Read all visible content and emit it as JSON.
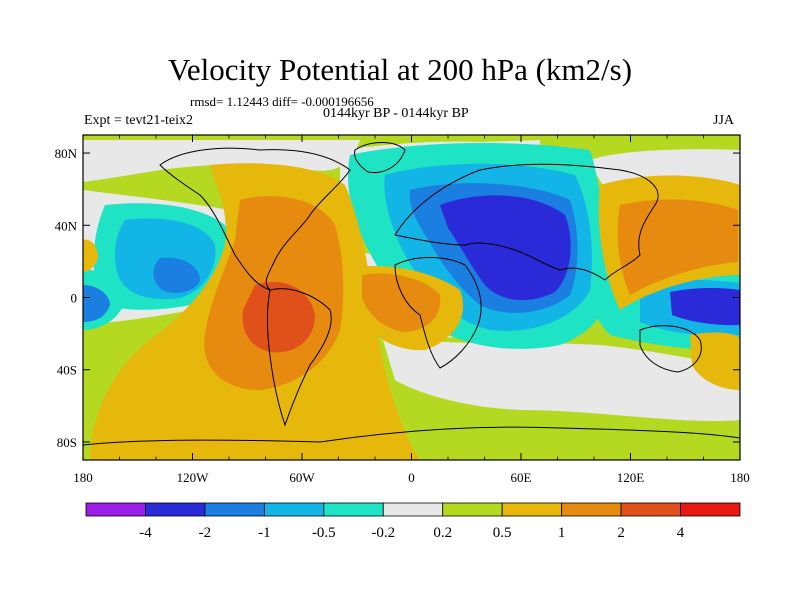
{
  "title": "Velocity Potential at 200 hPa (km2/s)",
  "stats": {
    "rmsd_label": "rmsd=",
    "rmsd_value": "1.12443",
    "diff_label": "diff=",
    "diff_value": "-0.000196656",
    "line": "rmsd= 1.12443 diff= -0.000196656"
  },
  "experiment": "Expt = tevt21-teix2",
  "time_range": "0144kyr BP - 0144kyr BP",
  "season": "JJA",
  "axes": {
    "x_ticks": [
      "180",
      "120W",
      "60W",
      "0",
      "60E",
      "120E",
      "180"
    ],
    "y_ticks": [
      "80N",
      "40N",
      "0",
      "40S",
      "80S"
    ]
  },
  "colorbar": {
    "labels": [
      "-4",
      "-2",
      "-1",
      "-0.5",
      "-0.2",
      "0.2",
      "0.5",
      "1",
      "2",
      "4"
    ],
    "colors": [
      "#9b1ee6",
      "#2a2ad8",
      "#1a7fe0",
      "#12b5e6",
      "#1ee3c4",
      "#e8e8e8",
      "#b5d820",
      "#e6b80c",
      "#e68a10",
      "#e0501a",
      "#e61a10"
    ]
  },
  "palette": {
    "land_gray": "#e8e8e8",
    "coast": "#000000"
  }
}
